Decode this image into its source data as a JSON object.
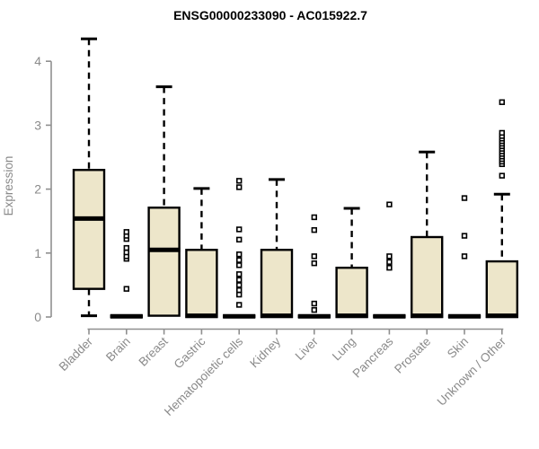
{
  "chart_data": {
    "type": "boxplot",
    "title": "ENSG00000233090 - AC015922.7",
    "xlabel": "",
    "ylabel": "Expression",
    "ylim": [
      0,
      4.45
    ],
    "yticks": [
      0,
      1,
      2,
      3,
      4
    ],
    "grid": false,
    "legend": "none",
    "box_fill": "#ede6ca",
    "box_stroke": "#000000",
    "axis_color": "#8f8f8f",
    "text_color": "#8a8a8a",
    "categories": [
      "Bladder",
      "Brain",
      "Breast",
      "Gastric",
      "Hematopoietic cells",
      "Kidney",
      "Liver",
      "Lung",
      "Pancreas",
      "Prostate",
      "Skin",
      "Unknown / Other"
    ],
    "series": [
      {
        "name": "Bladder",
        "whisker_low": 0.02,
        "q1": 0.44,
        "median": 1.54,
        "q3": 2.3,
        "whisker_high": 4.35,
        "outliers": []
      },
      {
        "name": "Brain",
        "whisker_low": 0,
        "q1": 0,
        "median": 0.01,
        "q3": 0.02,
        "whisker_high": 0.02,
        "outliers": [
          0.44,
          0.91,
          0.95,
          1.01,
          1.08,
          1.22,
          1.27,
          1.33
        ]
      },
      {
        "name": "Breast",
        "whisker_low": 0.02,
        "q1": 0.02,
        "median": 1.05,
        "q3": 1.71,
        "whisker_high": 3.6,
        "outliers": []
      },
      {
        "name": "Gastric",
        "whisker_low": 0,
        "q1": 0,
        "median": 0.02,
        "q3": 1.05,
        "whisker_high": 2.01,
        "outliers": []
      },
      {
        "name": "Hematopoietic cells",
        "whisker_low": 0,
        "q1": 0,
        "median": 0.01,
        "q3": 0.02,
        "whisker_high": 0.02,
        "outliers": [
          0.19,
          0.35,
          0.42,
          0.5,
          0.58,
          0.67,
          0.81,
          0.89,
          0.98,
          1.21,
          1.37,
          2.03,
          2.13
        ]
      },
      {
        "name": "Kidney",
        "whisker_low": 0,
        "q1": 0,
        "median": 0.02,
        "q3": 1.05,
        "whisker_high": 2.15,
        "outliers": []
      },
      {
        "name": "Liver",
        "whisker_low": 0,
        "q1": 0,
        "median": 0.01,
        "q3": 0.02,
        "whisker_high": 0.02,
        "outliers": [
          0.11,
          0.21,
          0.84,
          0.95,
          1.36,
          1.56
        ]
      },
      {
        "name": "Lung",
        "whisker_low": 0,
        "q1": 0,
        "median": 0.02,
        "q3": 0.77,
        "whisker_high": 1.7,
        "outliers": []
      },
      {
        "name": "Pancreas",
        "whisker_low": 0,
        "q1": 0,
        "median": 0.01,
        "q3": 0.02,
        "whisker_high": 0.02,
        "outliers": [
          0.77,
          0.86,
          0.95,
          1.76
        ]
      },
      {
        "name": "Prostate",
        "whisker_low": 0,
        "q1": 0,
        "median": 0.02,
        "q3": 1.25,
        "whisker_high": 2.58,
        "outliers": []
      },
      {
        "name": "Skin",
        "whisker_low": 0,
        "q1": 0,
        "median": 0.01,
        "q3": 0.02,
        "whisker_high": 0.02,
        "outliers": [
          0.95,
          1.27,
          1.86
        ]
      },
      {
        "name": "Unknown / Other",
        "whisker_low": 0,
        "q1": 0,
        "median": 0.02,
        "q3": 0.87,
        "whisker_high": 1.92,
        "outliers": [
          2.21,
          2.39,
          2.43,
          2.47,
          2.51,
          2.55,
          2.59,
          2.63,
          2.67,
          2.71,
          2.75,
          2.79,
          2.83,
          2.88,
          3.36
        ]
      }
    ]
  }
}
